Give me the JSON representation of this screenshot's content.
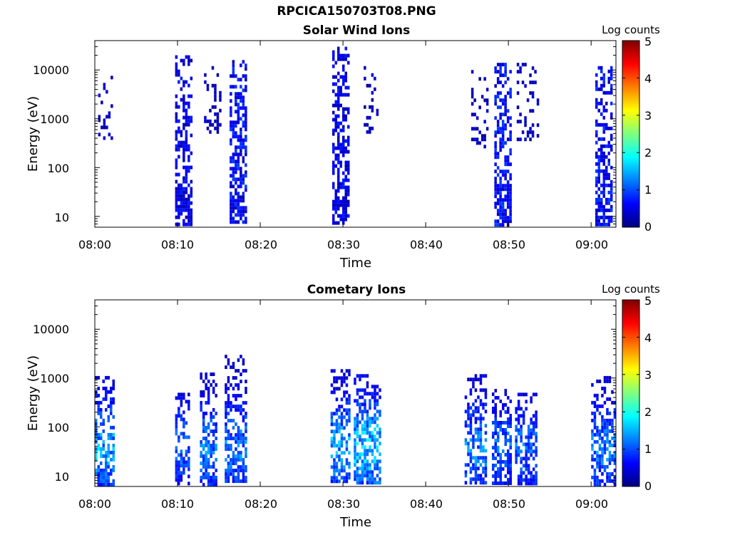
{
  "figure": {
    "title": "RPCICA150703T08.PNG"
  },
  "colors": {
    "colormap": [
      "#00007f",
      "#0000ff",
      "#007fff",
      "#00ffff",
      "#7fff7f",
      "#ffff00",
      "#ff7f00",
      "#ff0000",
      "#7f0000"
    ],
    "axis": "#000000"
  },
  "chart_data": [
    {
      "type": "heatmap",
      "title": "Solar Wind Ions",
      "xlabel": "Time",
      "ylabel": "Energy (eV)",
      "x_ticks": [
        "08:00",
        "08:10",
        "08:20",
        "08:30",
        "08:40",
        "08:50",
        "09:00"
      ],
      "x_range_minutes": [
        0,
        63
      ],
      "y_scale": "log",
      "y_ticks": [
        "10",
        "100",
        "1000",
        "10000"
      ],
      "y_range_eV": [
        6,
        40000
      ],
      "colorbar": {
        "label": "Log counts",
        "min": 0,
        "max": 5,
        "ticks": [
          "0",
          "1",
          "2",
          "3",
          "4",
          "5"
        ]
      },
      "bursts": [
        {
          "t_start_min": 0.4,
          "t_end_min": 2.0,
          "e_min_eV": 400,
          "e_max_eV": 9000,
          "intensity": 0.15,
          "density": 0.3
        },
        {
          "t_start_min": 9.7,
          "t_end_min": 11.6,
          "e_min_eV": 6,
          "e_max_eV": 20000,
          "intensity": 0.25,
          "density": 0.75
        },
        {
          "t_start_min": 13.2,
          "t_end_min": 15.2,
          "e_min_eV": 500,
          "e_max_eV": 12000,
          "intensity": 0.15,
          "density": 0.3
        },
        {
          "t_start_min": 16.3,
          "t_end_min": 18.3,
          "e_min_eV": 6,
          "e_max_eV": 16000,
          "intensity": 0.3,
          "density": 0.8
        },
        {
          "t_start_min": 28.7,
          "t_end_min": 30.8,
          "e_min_eV": 6,
          "e_max_eV": 30000,
          "intensity": 0.25,
          "density": 0.75
        },
        {
          "t_start_min": 32.5,
          "t_end_min": 34.3,
          "e_min_eV": 500,
          "e_max_eV": 12000,
          "intensity": 0.15,
          "density": 0.3
        },
        {
          "t_start_min": 45.5,
          "t_end_min": 47.5,
          "e_min_eV": 250,
          "e_max_eV": 10000,
          "intensity": 0.15,
          "density": 0.3
        },
        {
          "t_start_min": 48.3,
          "t_end_min": 50.2,
          "e_min_eV": 6,
          "e_max_eV": 14000,
          "intensity": 0.3,
          "density": 0.8
        },
        {
          "t_start_min": 51.0,
          "t_end_min": 53.5,
          "e_min_eV": 400,
          "e_max_eV": 14000,
          "intensity": 0.15,
          "density": 0.3
        },
        {
          "t_start_min": 60.5,
          "t_end_min": 62.6,
          "e_min_eV": 6,
          "e_max_eV": 12000,
          "intensity": 0.3,
          "density": 0.75
        }
      ]
    },
    {
      "type": "heatmap",
      "title": "Cometary Ions",
      "xlabel": "Time",
      "ylabel": "Energy (eV)",
      "x_ticks": [
        "08:00",
        "08:10",
        "08:20",
        "08:30",
        "08:40",
        "08:50",
        "09:00"
      ],
      "x_range_minutes": [
        0,
        63
      ],
      "y_scale": "log",
      "y_ticks": [
        "10",
        "100",
        "1000",
        "10000"
      ],
      "y_range_eV": [
        6,
        40000
      ],
      "colorbar": {
        "label": "Log counts",
        "min": 0,
        "max": 5,
        "ticks": [
          "0",
          "1",
          "2",
          "3",
          "4",
          "5"
        ]
      },
      "bursts": [
        {
          "t_start_min": 0.0,
          "t_end_min": 2.2,
          "e_min_eV": 6,
          "e_max_eV": 1100,
          "intensity": 0.7,
          "density": 0.7
        },
        {
          "t_start_min": 9.7,
          "t_end_min": 11.5,
          "e_min_eV": 6,
          "e_max_eV": 500,
          "intensity": 0.55,
          "density": 0.7
        },
        {
          "t_start_min": 12.7,
          "t_end_min": 14.8,
          "e_min_eV": 6,
          "e_max_eV": 1300,
          "intensity": 0.6,
          "density": 0.7
        },
        {
          "t_start_min": 15.7,
          "t_end_min": 18.3,
          "e_min_eV": 6,
          "e_max_eV": 3000,
          "intensity": 0.6,
          "density": 0.7
        },
        {
          "t_start_min": 28.5,
          "t_end_min": 30.8,
          "e_min_eV": 6,
          "e_max_eV": 1800,
          "intensity": 0.7,
          "density": 0.75
        },
        {
          "t_start_min": 31.3,
          "t_end_min": 34.5,
          "e_min_eV": 6,
          "e_max_eV": 1200,
          "intensity": 0.8,
          "density": 0.8
        },
        {
          "t_start_min": 44.7,
          "t_end_min": 47.2,
          "e_min_eV": 6,
          "e_max_eV": 1200,
          "intensity": 0.6,
          "density": 0.7
        },
        {
          "t_start_min": 48.0,
          "t_end_min": 50.3,
          "e_min_eV": 6,
          "e_max_eV": 600,
          "intensity": 0.55,
          "density": 0.7
        },
        {
          "t_start_min": 50.8,
          "t_end_min": 53.5,
          "e_min_eV": 6,
          "e_max_eV": 500,
          "intensity": 0.55,
          "density": 0.7
        },
        {
          "t_start_min": 60.0,
          "t_end_min": 62.8,
          "e_min_eV": 6,
          "e_max_eV": 1100,
          "intensity": 0.6,
          "density": 0.7
        }
      ]
    }
  ]
}
